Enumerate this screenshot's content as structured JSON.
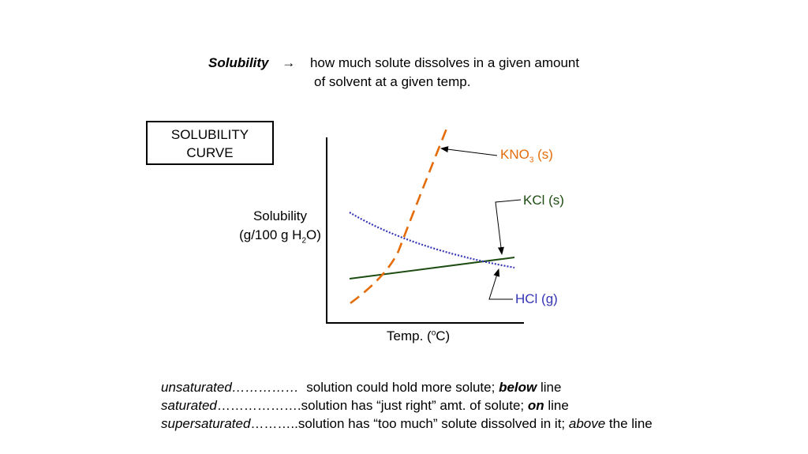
{
  "header": {
    "term": "Solubility",
    "arrow": "→",
    "definition_line1": "how much solute dissolves in a given amount",
    "definition_line2": "of solvent at a given temp."
  },
  "title_box": {
    "line1": "SOLUBILITY",
    "line2": "CURVE"
  },
  "axes": {
    "y_label_line1": "Solubility",
    "y_label_line2_pre": "(g/100 g H",
    "y_label_line2_sub": "2",
    "y_label_line2_post": "O)",
    "x_label_pre": "Temp. (",
    "x_label_sup": "o",
    "x_label_post": "C)"
  },
  "curves": {
    "kno3": {
      "label_pre": "KNO",
      "label_sub": "3",
      "label_post": " (s)",
      "color": "#e46c0a",
      "style": "dashed"
    },
    "kcl": {
      "label": "KCl (s)",
      "color": "#1e4d12",
      "style": "solid"
    },
    "hcl": {
      "label": "HCl (g)",
      "color": "#3535b5",
      "style": "dotted"
    }
  },
  "definitions": [
    {
      "term": "unsaturated",
      "dots": "……………",
      "pre": "solution could hold more solute; ",
      "emph": "below",
      "post": " line"
    },
    {
      "term": "saturated",
      "dots": "………………",
      "pre": ".solution has “just right” amt. of solute; ",
      "emph": "on",
      "post": " line"
    },
    {
      "term": "supersaturated",
      "dots": "………",
      "pre": "..solution has “too much” solute dissolved in it; ",
      "emph": "above",
      "post": " the line"
    }
  ]
}
